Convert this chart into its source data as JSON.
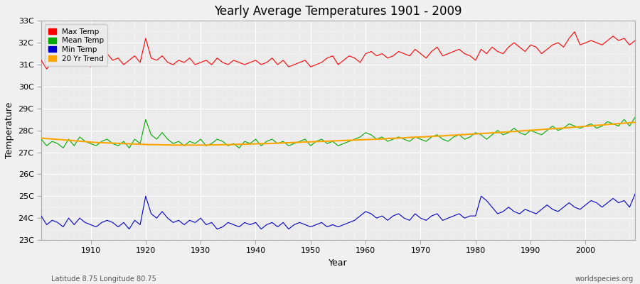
{
  "title": "Yearly Average Temperatures 1901 - 2009",
  "xlabel": "Year",
  "ylabel": "Temperature",
  "subtitle_left": "Latitude 8.75 Longitude 80.75",
  "subtitle_right": "worldspecies.org",
  "bg_color": "#f0f0f0",
  "plot_bg_color": "#ebebeb",
  "grid_color": "#ffffff",
  "years": [
    1901,
    1902,
    1903,
    1904,
    1905,
    1906,
    1907,
    1908,
    1909,
    1910,
    1911,
    1912,
    1913,
    1914,
    1915,
    1916,
    1917,
    1918,
    1919,
    1920,
    1921,
    1922,
    1923,
    1924,
    1925,
    1926,
    1927,
    1928,
    1929,
    1930,
    1931,
    1932,
    1933,
    1934,
    1935,
    1936,
    1937,
    1938,
    1939,
    1940,
    1941,
    1942,
    1943,
    1944,
    1945,
    1946,
    1947,
    1948,
    1949,
    1950,
    1951,
    1952,
    1953,
    1954,
    1955,
    1956,
    1957,
    1958,
    1959,
    1960,
    1961,
    1962,
    1963,
    1964,
    1965,
    1966,
    1967,
    1968,
    1969,
    1970,
    1971,
    1972,
    1973,
    1974,
    1975,
    1976,
    1977,
    1978,
    1979,
    1980,
    1981,
    1982,
    1983,
    1984,
    1985,
    1986,
    1987,
    1988,
    1989,
    1990,
    1991,
    1992,
    1993,
    1994,
    1995,
    1996,
    1997,
    1998,
    1999,
    2000,
    2001,
    2002,
    2003,
    2004,
    2005,
    2006,
    2007,
    2008,
    2009
  ],
  "max_temp": [
    31.2,
    30.8,
    31.1,
    31.3,
    31.0,
    31.3,
    31.1,
    31.2,
    31.0,
    30.9,
    31.4,
    31.1,
    31.5,
    31.2,
    31.3,
    31.0,
    31.2,
    31.4,
    31.1,
    32.2,
    31.3,
    31.2,
    31.4,
    31.1,
    31.0,
    31.2,
    31.1,
    31.3,
    31.0,
    31.1,
    31.2,
    31.0,
    31.3,
    31.1,
    31.0,
    31.2,
    31.1,
    31.0,
    31.1,
    31.2,
    31.0,
    31.1,
    31.3,
    31.0,
    31.2,
    30.9,
    31.0,
    31.1,
    31.2,
    30.9,
    31.0,
    31.1,
    31.3,
    31.4,
    31.0,
    31.2,
    31.4,
    31.3,
    31.1,
    31.5,
    31.6,
    31.4,
    31.5,
    31.3,
    31.4,
    31.6,
    31.5,
    31.4,
    31.7,
    31.5,
    31.3,
    31.6,
    31.8,
    31.4,
    31.5,
    31.6,
    31.7,
    31.5,
    31.4,
    31.2,
    31.7,
    31.5,
    31.8,
    31.6,
    31.5,
    31.8,
    32.0,
    31.8,
    31.6,
    31.9,
    31.8,
    31.5,
    31.7,
    31.9,
    32.0,
    31.8,
    32.2,
    32.5,
    31.9,
    32.0,
    32.1,
    32.0,
    31.9,
    32.1,
    32.3,
    32.1,
    32.2,
    31.9,
    32.1
  ],
  "mean_temp": [
    27.6,
    27.3,
    27.5,
    27.4,
    27.2,
    27.6,
    27.3,
    27.7,
    27.5,
    27.4,
    27.3,
    27.5,
    27.6,
    27.4,
    27.3,
    27.5,
    27.2,
    27.6,
    27.4,
    28.5,
    27.8,
    27.6,
    27.9,
    27.6,
    27.4,
    27.5,
    27.3,
    27.5,
    27.4,
    27.6,
    27.3,
    27.4,
    27.6,
    27.5,
    27.3,
    27.4,
    27.2,
    27.5,
    27.4,
    27.6,
    27.3,
    27.5,
    27.6,
    27.4,
    27.5,
    27.3,
    27.4,
    27.5,
    27.6,
    27.3,
    27.5,
    27.6,
    27.4,
    27.5,
    27.3,
    27.4,
    27.5,
    27.6,
    27.7,
    27.9,
    27.8,
    27.6,
    27.7,
    27.5,
    27.6,
    27.7,
    27.6,
    27.5,
    27.7,
    27.6,
    27.5,
    27.7,
    27.8,
    27.6,
    27.5,
    27.7,
    27.8,
    27.6,
    27.7,
    27.9,
    27.8,
    27.6,
    27.8,
    28.0,
    27.8,
    27.9,
    28.1,
    27.9,
    27.8,
    28.0,
    27.9,
    27.8,
    28.0,
    28.2,
    28.0,
    28.1,
    28.3,
    28.2,
    28.1,
    28.2,
    28.3,
    28.1,
    28.2,
    28.4,
    28.3,
    28.2,
    28.5,
    28.2,
    28.6
  ],
  "min_temp": [
    24.1,
    23.7,
    23.9,
    23.8,
    23.6,
    24.0,
    23.7,
    24.0,
    23.8,
    23.7,
    23.6,
    23.8,
    23.9,
    23.8,
    23.6,
    23.8,
    23.5,
    23.9,
    23.7,
    25.0,
    24.2,
    24.0,
    24.3,
    24.0,
    23.8,
    23.9,
    23.7,
    23.9,
    23.8,
    24.0,
    23.7,
    23.8,
    23.5,
    23.6,
    23.8,
    23.7,
    23.6,
    23.8,
    23.7,
    23.8,
    23.5,
    23.7,
    23.8,
    23.6,
    23.8,
    23.5,
    23.7,
    23.8,
    23.7,
    23.6,
    23.7,
    23.8,
    23.6,
    23.7,
    23.6,
    23.7,
    23.8,
    23.9,
    24.1,
    24.3,
    24.2,
    24.0,
    24.1,
    23.9,
    24.1,
    24.2,
    24.0,
    23.9,
    24.2,
    24.0,
    23.9,
    24.1,
    24.2,
    23.9,
    24.0,
    24.1,
    24.2,
    24.0,
    24.1,
    24.1,
    25.0,
    24.8,
    24.5,
    24.2,
    24.3,
    24.5,
    24.3,
    24.2,
    24.4,
    24.3,
    24.2,
    24.4,
    24.6,
    24.4,
    24.3,
    24.5,
    24.7,
    24.5,
    24.4,
    24.6,
    24.8,
    24.7,
    24.5,
    24.7,
    24.9,
    24.7,
    24.8,
    24.5,
    25.1
  ],
  "trend": [
    27.65,
    27.63,
    27.61,
    27.59,
    27.57,
    27.55,
    27.53,
    27.51,
    27.49,
    27.47,
    27.45,
    27.44,
    27.43,
    27.42,
    27.41,
    27.4,
    27.39,
    27.38,
    27.37,
    27.36,
    27.35,
    27.35,
    27.34,
    27.34,
    27.33,
    27.33,
    27.33,
    27.33,
    27.33,
    27.33,
    27.33,
    27.34,
    27.34,
    27.35,
    27.35,
    27.36,
    27.37,
    27.37,
    27.38,
    27.39,
    27.4,
    27.4,
    27.41,
    27.42,
    27.43,
    27.44,
    27.45,
    27.46,
    27.47,
    27.48,
    27.49,
    27.5,
    27.51,
    27.52,
    27.53,
    27.54,
    27.55,
    27.56,
    27.57,
    27.58,
    27.59,
    27.6,
    27.61,
    27.63,
    27.64,
    27.65,
    27.66,
    27.68,
    27.69,
    27.7,
    27.71,
    27.73,
    27.74,
    27.75,
    27.77,
    27.78,
    27.8,
    27.81,
    27.83,
    27.84,
    27.86,
    27.87,
    27.89,
    27.9,
    27.92,
    27.94,
    27.95,
    27.97,
    27.99,
    28.01,
    28.02,
    28.04,
    28.06,
    28.08,
    28.09,
    28.11,
    28.13,
    28.15,
    28.17,
    28.19,
    28.21,
    28.23,
    28.25,
    28.27,
    28.29,
    28.31,
    28.33,
    28.35,
    28.37
  ],
  "max_color": "#ff0000",
  "mean_color": "#00aa00",
  "min_color": "#0000cc",
  "trend_color": "#ffa500",
  "yticks": [
    23,
    24,
    25,
    26,
    27,
    28,
    29,
    30,
    31,
    32,
    33
  ],
  "ytick_labels": [
    "23C",
    "24C",
    "25C",
    "26C",
    "27C",
    "28C",
    "29C",
    "30C",
    "31C",
    "32C",
    "33C"
  ],
  "ylim": [
    23,
    33
  ],
  "xticks": [
    1910,
    1920,
    1930,
    1940,
    1950,
    1960,
    1970,
    1980,
    1990,
    2000
  ],
  "xlim": [
    1901,
    2009
  ]
}
